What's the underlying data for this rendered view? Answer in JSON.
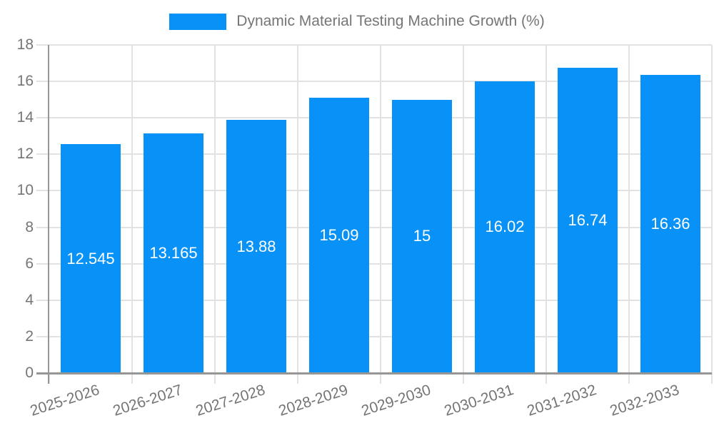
{
  "chart_data": {
    "type": "bar",
    "title": "Dynamic Material Testing Machine Growth (%)",
    "categories": [
      "2025-2026",
      "2026-2027",
      "2027-2028",
      "2028-2029",
      "2029-2030",
      "2030-2031",
      "2031-2032",
      "2032-2033"
    ],
    "values": [
      12.545,
      13.165,
      13.88,
      15.09,
      15,
      16.02,
      16.74,
      16.36
    ],
    "value_labels": [
      "12.545",
      "13.165",
      "13.88",
      "15.09",
      "15",
      "16.02",
      "16.74",
      "16.36"
    ],
    "xlabel": "",
    "ylabel": "",
    "ylim": [
      0,
      18
    ],
    "yticks": [
      0,
      2,
      4,
      6,
      8,
      10,
      12,
      14,
      16,
      18
    ],
    "grid": true,
    "legend_position": "top",
    "x_tick_rotation_deg": -18,
    "colors": {
      "bar": "#0892f8",
      "grid": "#e2e2e2",
      "axis": "#969696",
      "tick_label": "#757575",
      "value_label": "#ffffff",
      "background": "#ffffff"
    }
  }
}
